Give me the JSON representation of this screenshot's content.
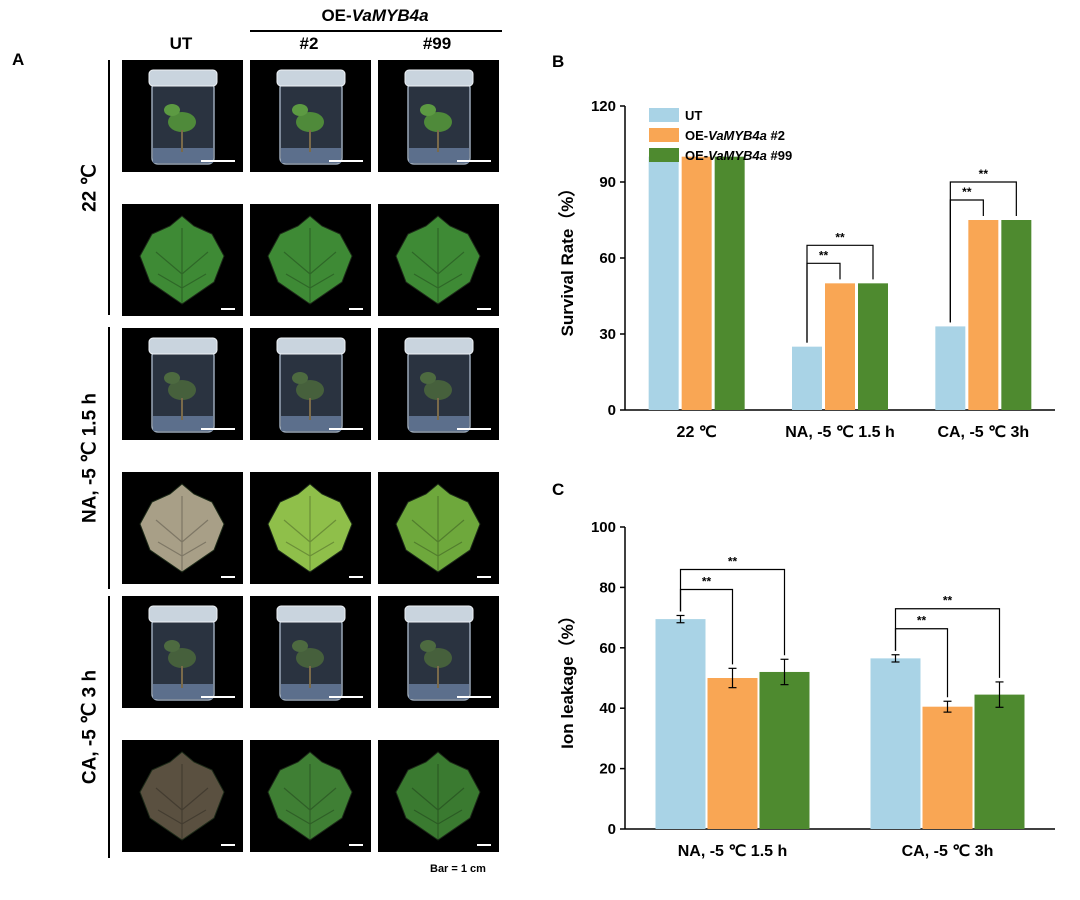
{
  "panel_a": {
    "letter": "A",
    "oe_prefix": "OE-",
    "oe_gene": "VaMYB4a",
    "columns": [
      "UT",
      "#2",
      "#99"
    ],
    "rows": [
      "22 ℃",
      "NA, -5 ℃ 1.5 h",
      "CA, -5 ℃ 3 h"
    ],
    "scale_note": "Bar = 1 cm",
    "photo_icons": [
      "jar-plantlet-image",
      "leaf-image"
    ]
  },
  "chart_data": [
    {
      "panel": "B",
      "type": "bar",
      "categories": [
        "22 ℃",
        "NA, -5 ℃ 1.5 h",
        "CA, -5 ℃ 3h"
      ],
      "series": [
        {
          "name": "UT",
          "values": [
            100,
            25,
            33
          ]
        },
        {
          "name": "OE-VaMYB4a #2",
          "values": [
            100,
            50,
            75
          ]
        },
        {
          "name": "OE-VaMYB4a #99",
          "values": [
            100,
            50,
            75
          ]
        }
      ],
      "ylabel": "Survival Rate（%）",
      "xlabel": "",
      "ylim": [
        0,
        120
      ],
      "yticks": [
        0,
        30,
        60,
        90,
        120
      ],
      "legend": {
        "position": "top-left",
        "entries": [
          {
            "prefix": "UT",
            "gene": "",
            "suffix": ""
          },
          {
            "prefix": "OE-",
            "gene": "VaMYB4a",
            "suffix": " #2"
          },
          {
            "prefix": "OE-",
            "gene": "VaMYB4a",
            "suffix": " #99"
          }
        ]
      },
      "significance": [
        {
          "category": 1,
          "from": 0,
          "to": 1,
          "label": "**"
        },
        {
          "category": 1,
          "from": 0,
          "to": 2,
          "label": "**"
        },
        {
          "category": 2,
          "from": 0,
          "to": 1,
          "label": "**"
        },
        {
          "category": 2,
          "from": 0,
          "to": 2,
          "label": "**"
        }
      ]
    },
    {
      "panel": "C",
      "type": "bar",
      "categories": [
        "NA, -5 ℃ 1.5 h",
        "CA, -5 ℃ 3h"
      ],
      "series": [
        {
          "name": "UT",
          "values": [
            69.5,
            56.5
          ],
          "errors": [
            1.2,
            1.2
          ]
        },
        {
          "name": "OE-VaMYB4a #2",
          "values": [
            50,
            40.5
          ],
          "errors": [
            3.2,
            1.8
          ]
        },
        {
          "name": "OE-VaMYB4a #99",
          "values": [
            52,
            44.5
          ],
          "errors": [
            4.2,
            4.2
          ]
        }
      ],
      "ylabel": "Ion leakage（%）",
      "xlabel": "",
      "ylim": [
        0,
        100
      ],
      "yticks": [
        0,
        20,
        40,
        60,
        80,
        100
      ],
      "significance": [
        {
          "category": 0,
          "from": 0,
          "to": 1,
          "label": "**"
        },
        {
          "category": 0,
          "from": 0,
          "to": 2,
          "label": "**"
        },
        {
          "category": 1,
          "from": 0,
          "to": 1,
          "label": "**"
        },
        {
          "category": 1,
          "from": 0,
          "to": 2,
          "label": "**"
        }
      ]
    }
  ],
  "colors": {
    "ut": "#a9d3e6",
    "oe2": "#f9a654",
    "oe99": "#4e8a2f",
    "axis": "#000000",
    "photo_bg": "#000000",
    "leaf_green": "#3e8a35",
    "leaf_damaged": "#a89f87",
    "leaf_dark": "#5a5040"
  }
}
